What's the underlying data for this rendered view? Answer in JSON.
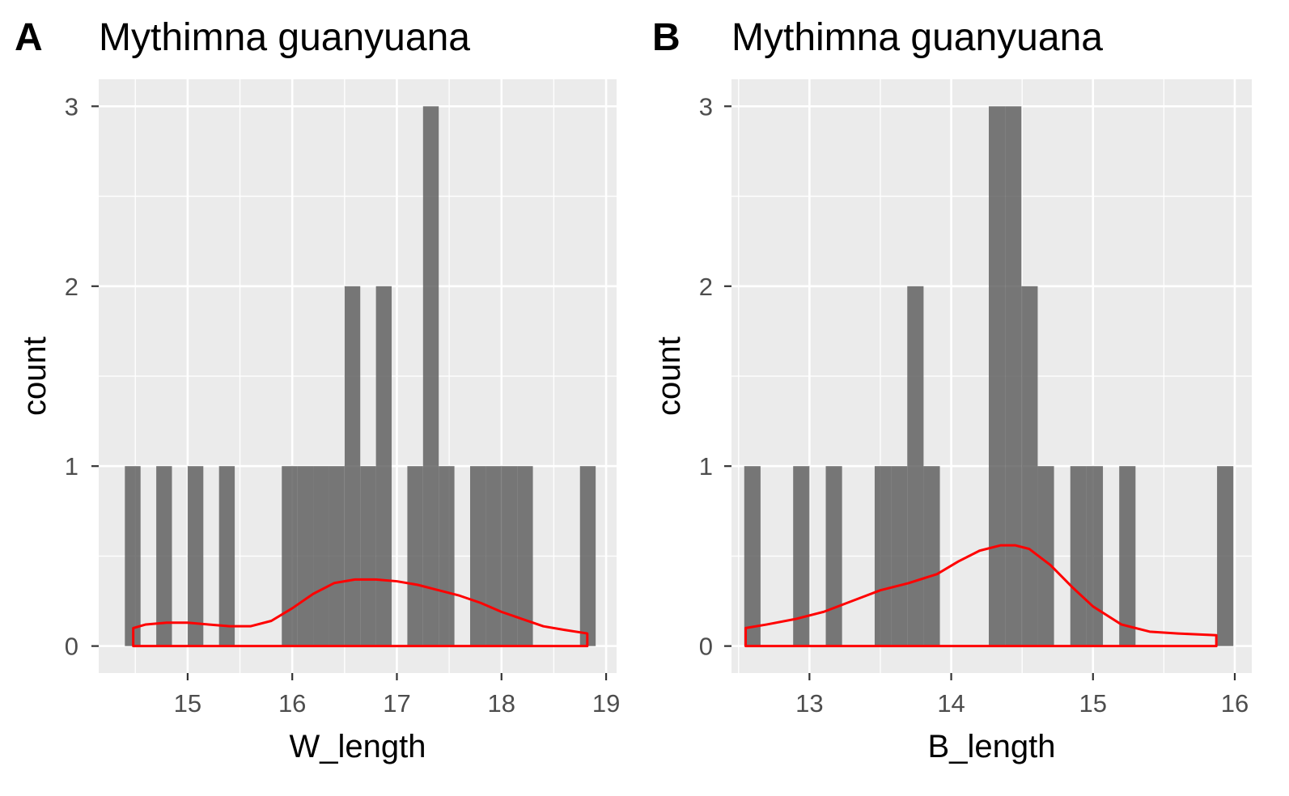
{
  "chart_data": [
    {
      "type": "bar",
      "panel_tag": "A",
      "title": "Mythimna guanyuana",
      "xlabel": "W_length",
      "ylabel": "count",
      "xlim": [
        14.15,
        19.1
      ],
      "ylim": [
        -0.15,
        3.15
      ],
      "x_major_ticks": [
        15,
        16,
        17,
        18,
        19
      ],
      "x_minor_ticks": [
        14.5,
        15.5,
        16.5,
        17.5,
        18.5
      ],
      "y_major_ticks": [
        0,
        1,
        2,
        3
      ],
      "y_minor_ticks": [
        0.5,
        1.5,
        2.5
      ],
      "x_tick_labels": [
        "15",
        "16",
        "17",
        "18",
        "19"
      ],
      "y_tick_labels": [
        "0",
        "1",
        "2",
        "3"
      ],
      "grid": true,
      "bar_color": "#595959",
      "density_color": "#ff0000",
      "histogram": {
        "bin_edges": [
          14.4,
          14.55,
          14.7,
          14.85,
          15.0,
          15.15,
          15.3,
          15.45,
          15.6,
          15.75,
          15.9,
          16.05,
          16.2,
          16.35,
          16.5,
          16.65,
          16.8,
          16.95,
          17.1,
          17.25,
          17.4,
          17.55,
          17.7,
          17.85,
          18.0,
          18.15,
          18.3,
          18.45,
          18.6,
          18.75,
          18.9
        ],
        "counts": [
          1,
          0,
          1,
          0,
          1,
          0,
          1,
          0,
          0,
          0,
          1,
          1,
          1,
          1,
          2,
          1,
          2,
          0,
          1,
          3,
          1,
          0,
          1,
          1,
          1,
          1,
          0,
          0,
          0,
          1
        ]
      },
      "density": {
        "x": [
          14.48,
          14.6,
          14.8,
          15.0,
          15.2,
          15.4,
          15.6,
          15.8,
          16.0,
          16.2,
          16.4,
          16.6,
          16.8,
          17.0,
          17.2,
          17.4,
          17.6,
          17.8,
          18.0,
          18.2,
          18.4,
          18.6,
          18.82
        ],
        "y": [
          0.1,
          0.12,
          0.13,
          0.13,
          0.12,
          0.11,
          0.11,
          0.14,
          0.21,
          0.29,
          0.35,
          0.37,
          0.37,
          0.36,
          0.34,
          0.31,
          0.28,
          0.24,
          0.19,
          0.15,
          0.11,
          0.09,
          0.07
        ]
      }
    },
    {
      "type": "bar",
      "panel_tag": "B",
      "title": "Mythimna guanyuana",
      "xlabel": "B_length",
      "ylabel": "count",
      "xlim": [
        12.45,
        16.12
      ],
      "ylim": [
        -0.15,
        3.15
      ],
      "x_major_ticks": [
        13,
        14,
        15,
        16
      ],
      "x_minor_ticks": [
        12.5,
        13.5,
        14.5,
        15.5
      ],
      "y_major_ticks": [
        0,
        1,
        2,
        3
      ],
      "y_minor_ticks": [
        0.5,
        1.5,
        2.5
      ],
      "x_tick_labels": [
        "13",
        "14",
        "15",
        "16"
      ],
      "y_tick_labels": [
        "0",
        "1",
        "2",
        "3"
      ],
      "grid": true,
      "bar_color": "#595959",
      "density_color": "#ff0000",
      "histogram": {
        "bin_edges": [
          12.54,
          12.655,
          12.77,
          12.885,
          13.0,
          13.115,
          13.23,
          13.345,
          13.46,
          13.575,
          13.69,
          13.805,
          13.92,
          14.035,
          14.15,
          14.265,
          14.38,
          14.495,
          14.61,
          14.725,
          14.84,
          14.955,
          15.07,
          15.185,
          15.3,
          15.415,
          15.53,
          15.645,
          15.76,
          15.875,
          15.99
        ],
        "counts": [
          1,
          0,
          0,
          1,
          0,
          1,
          0,
          0,
          1,
          1,
          2,
          1,
          0,
          0,
          0,
          3,
          3,
          2,
          1,
          0,
          1,
          1,
          0,
          1,
          0,
          0,
          0,
          0,
          0,
          1
        ]
      },
      "density": {
        "x": [
          12.55,
          12.7,
          12.9,
          13.1,
          13.3,
          13.5,
          13.7,
          13.9,
          14.05,
          14.2,
          14.35,
          14.45,
          14.55,
          14.7,
          14.85,
          15.0,
          15.2,
          15.4,
          15.6,
          15.87
        ],
        "y": [
          0.1,
          0.12,
          0.15,
          0.19,
          0.25,
          0.31,
          0.35,
          0.4,
          0.47,
          0.53,
          0.56,
          0.56,
          0.54,
          0.45,
          0.33,
          0.22,
          0.12,
          0.08,
          0.07,
          0.06
        ]
      }
    }
  ]
}
